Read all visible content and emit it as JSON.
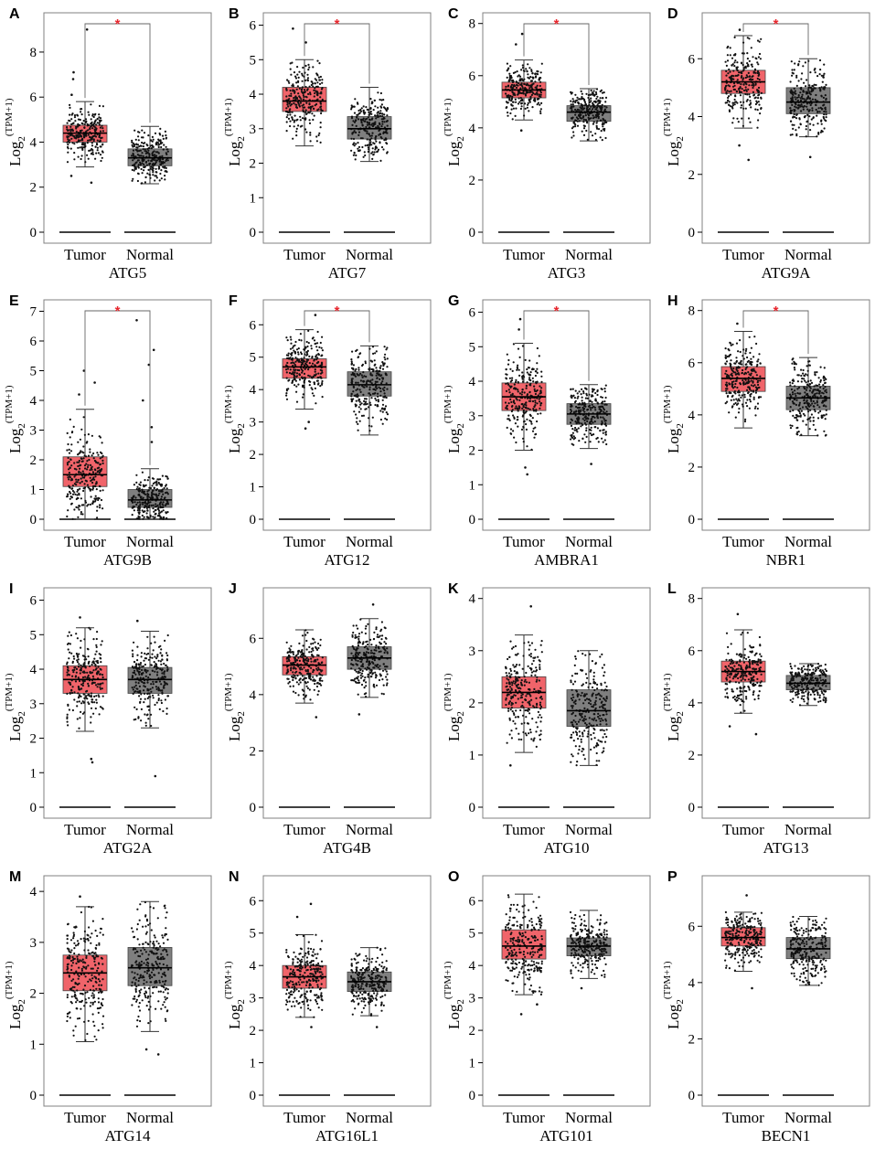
{
  "figure": {
    "y_axis_label": {
      "base": "Log",
      "subscript": "2",
      "superscript": "(TPM+1)"
    },
    "group_labels": [
      "Tumor",
      "Normal"
    ],
    "significance_mark": "*",
    "colors": {
      "tumor": "#f0646a",
      "normal": "#7f7f7f",
      "significance": "#e8262d",
      "frame": "#808080",
      "points": "#111111"
    }
  },
  "chart_data": [
    {
      "type": "box",
      "panel": "A",
      "gene": "ATG5",
      "ylim": [
        0,
        9.5
      ],
      "ticks": [
        0,
        2,
        4,
        6,
        8
      ],
      "significant": true,
      "series": [
        {
          "name": "Tumor",
          "whisker_low": 2.9,
          "q1": 4.0,
          "median": 4.4,
          "q3": 4.75,
          "whisker_high": 5.8,
          "outliers": [
            2.2,
            2.5,
            6.1,
            6.8,
            7.1,
            9.0
          ]
        },
        {
          "name": "Normal",
          "whisker_low": 2.15,
          "q1": 2.95,
          "median": 3.3,
          "q3": 3.7,
          "whisker_high": 4.7,
          "outliers": []
        }
      ]
    },
    {
      "type": "box",
      "panel": "B",
      "gene": "ATG7",
      "ylim": [
        0,
        6.2
      ],
      "ticks": [
        0,
        1,
        2,
        3,
        4,
        5,
        6
      ],
      "significant": true,
      "series": [
        {
          "name": "Tumor",
          "whisker_low": 2.5,
          "q1": 3.5,
          "median": 3.8,
          "q3": 4.2,
          "whisker_high": 5.0,
          "outliers": [
            5.5,
            5.9
          ]
        },
        {
          "name": "Normal",
          "whisker_low": 2.05,
          "q1": 2.7,
          "median": 3.0,
          "q3": 3.35,
          "whisker_high": 4.2,
          "outliers": []
        }
      ]
    },
    {
      "type": "box",
      "panel": "C",
      "gene": "ATG3",
      "ylim": [
        0,
        8.2
      ],
      "ticks": [
        0,
        2,
        4,
        6,
        8
      ],
      "significant": true,
      "series": [
        {
          "name": "Tumor",
          "whisker_low": 4.3,
          "q1": 5.15,
          "median": 5.45,
          "q3": 5.75,
          "whisker_high": 6.6,
          "outliers": [
            3.9,
            7.2,
            7.6
          ]
        },
        {
          "name": "Normal",
          "whisker_low": 3.5,
          "q1": 4.25,
          "median": 4.6,
          "q3": 4.85,
          "whisker_high": 5.5,
          "outliers": []
        }
      ]
    },
    {
      "type": "box",
      "panel": "D",
      "gene": "ATG9A",
      "ylim": [
        0,
        7.4
      ],
      "ticks": [
        0,
        2,
        4,
        6
      ],
      "significant": true,
      "series": [
        {
          "name": "Tumor",
          "whisker_low": 3.6,
          "q1": 4.8,
          "median": 5.2,
          "q3": 5.6,
          "whisker_high": 6.8,
          "outliers": [
            2.5,
            3.0,
            7.0
          ]
        },
        {
          "name": "Normal",
          "whisker_low": 3.3,
          "q1": 4.1,
          "median": 4.5,
          "q3": 5.0,
          "whisker_high": 6.0,
          "outliers": [
            2.6
          ]
        }
      ]
    },
    {
      "type": "box",
      "panel": "E",
      "gene": "ATG9B",
      "ylim": [
        0,
        7.2
      ],
      "ticks": [
        0,
        1,
        2,
        3,
        4,
        5,
        6,
        7
      ],
      "significant": true,
      "series": [
        {
          "name": "Tumor",
          "whisker_low": 0.0,
          "q1": 1.1,
          "median": 1.5,
          "q3": 2.1,
          "whisker_high": 3.7,
          "outliers": [
            4.2,
            4.6,
            5.0
          ]
        },
        {
          "name": "Normal",
          "whisker_low": 0.0,
          "q1": 0.4,
          "median": 0.65,
          "q3": 1.0,
          "whisker_high": 1.7,
          "outliers": [
            2.6,
            3.1,
            4.0,
            5.2,
            5.7,
            6.7
          ]
        }
      ]
    },
    {
      "type": "box",
      "panel": "F",
      "gene": "ATG12",
      "ylim": [
        0,
        6.6
      ],
      "ticks": [
        0,
        1,
        2,
        3,
        4,
        5,
        6
      ],
      "significant": true,
      "series": [
        {
          "name": "Tumor",
          "whisker_low": 3.4,
          "q1": 4.35,
          "median": 4.7,
          "q3": 4.95,
          "whisker_high": 5.85,
          "outliers": [
            2.8,
            3.0,
            6.3
          ]
        },
        {
          "name": "Normal",
          "whisker_low": 2.6,
          "q1": 3.8,
          "median": 4.15,
          "q3": 4.55,
          "whisker_high": 5.35,
          "outliers": []
        }
      ]
    },
    {
      "type": "box",
      "panel": "G",
      "gene": "AMBRA1",
      "ylim": [
        0,
        6.2
      ],
      "ticks": [
        0,
        1,
        2,
        3,
        4,
        5,
        6
      ],
      "significant": true,
      "series": [
        {
          "name": "Tumor",
          "whisker_low": 2.0,
          "q1": 3.15,
          "median": 3.55,
          "q3": 3.95,
          "whisker_high": 5.1,
          "outliers": [
            1.3,
            1.5,
            5.5,
            5.8
          ]
        },
        {
          "name": "Normal",
          "whisker_low": 2.05,
          "q1": 2.75,
          "median": 3.05,
          "q3": 3.35,
          "whisker_high": 3.9,
          "outliers": [
            1.6
          ]
        }
      ]
    },
    {
      "type": "box",
      "panel": "H",
      "gene": "NBR1",
      "ylim": [
        0,
        8.2
      ],
      "ticks": [
        0,
        2,
        4,
        6,
        8
      ],
      "significant": true,
      "series": [
        {
          "name": "Tumor",
          "whisker_low": 3.5,
          "q1": 4.9,
          "median": 5.4,
          "q3": 5.85,
          "whisker_high": 7.2,
          "outliers": [
            7.5
          ]
        },
        {
          "name": "Normal",
          "whisker_low": 3.2,
          "q1": 4.2,
          "median": 4.65,
          "q3": 5.1,
          "whisker_high": 6.2,
          "outliers": []
        }
      ]
    },
    {
      "type": "box",
      "panel": "I",
      "gene": "ATG2A",
      "ylim": [
        0,
        6.2
      ],
      "ticks": [
        0,
        1,
        2,
        3,
        4,
        5,
        6
      ],
      "significant": false,
      "series": [
        {
          "name": "Tumor",
          "whisker_low": 2.2,
          "q1": 3.3,
          "median": 3.7,
          "q3": 4.1,
          "whisker_high": 5.2,
          "outliers": [
            1.3,
            1.4,
            5.5
          ]
        },
        {
          "name": "Normal",
          "whisker_low": 2.3,
          "q1": 3.3,
          "median": 3.7,
          "q3": 4.05,
          "whisker_high": 5.1,
          "outliers": [
            0.9,
            5.4
          ]
        }
      ]
    },
    {
      "type": "box",
      "panel": "J",
      "gene": "ATG4B",
      "ylim": [
        0,
        7.6
      ],
      "ticks": [
        0,
        2,
        4,
        6
      ],
      "significant": false,
      "series": [
        {
          "name": "Tumor",
          "whisker_low": 3.7,
          "q1": 4.7,
          "median": 5.05,
          "q3": 5.35,
          "whisker_high": 6.3,
          "outliers": [
            3.2
          ]
        },
        {
          "name": "Normal",
          "whisker_low": 3.9,
          "q1": 4.9,
          "median": 5.3,
          "q3": 5.7,
          "whisker_high": 6.7,
          "outliers": [
            3.3,
            7.2
          ]
        }
      ]
    },
    {
      "type": "box",
      "panel": "K",
      "gene": "ATG10",
      "ylim": [
        0,
        4.1
      ],
      "ticks": [
        0,
        1,
        2,
        3,
        4
      ],
      "significant": false,
      "series": [
        {
          "name": "Tumor",
          "whisker_low": 1.05,
          "q1": 1.9,
          "median": 2.2,
          "q3": 2.5,
          "whisker_high": 3.3,
          "outliers": [
            0.8,
            3.85
          ]
        },
        {
          "name": "Normal",
          "whisker_low": 0.8,
          "q1": 1.55,
          "median": 1.85,
          "q3": 2.25,
          "whisker_high": 3.0,
          "outliers": []
        }
      ]
    },
    {
      "type": "box",
      "panel": "L",
      "gene": "ATG13",
      "ylim": [
        0,
        8.2
      ],
      "ticks": [
        0,
        2,
        4,
        6,
        8
      ],
      "significant": false,
      "series": [
        {
          "name": "Tumor",
          "whisker_low": 3.6,
          "q1": 4.8,
          "median": 5.2,
          "q3": 5.6,
          "whisker_high": 6.8,
          "outliers": [
            2.8,
            3.1,
            7.4
          ]
        },
        {
          "name": "Normal",
          "whisker_low": 3.9,
          "q1": 4.5,
          "median": 4.75,
          "q3": 5.05,
          "whisker_high": 5.5,
          "outliers": []
        }
      ]
    },
    {
      "type": "box",
      "panel": "M",
      "gene": "ATG14",
      "ylim": [
        0,
        4.2
      ],
      "ticks": [
        0,
        1,
        2,
        3,
        4
      ],
      "significant": false,
      "series": [
        {
          "name": "Tumor",
          "whisker_low": 1.05,
          "q1": 2.05,
          "median": 2.4,
          "q3": 2.75,
          "whisker_high": 3.7,
          "outliers": [
            3.9
          ]
        },
        {
          "name": "Normal",
          "whisker_low": 1.25,
          "q1": 2.15,
          "median": 2.5,
          "q3": 2.9,
          "whisker_high": 3.8,
          "outliers": [
            0.8,
            0.9
          ]
        }
      ]
    },
    {
      "type": "box",
      "panel": "N",
      "gene": "ATG16L1",
      "ylim": [
        0,
        6.6
      ],
      "ticks": [
        0,
        1,
        2,
        3,
        4,
        5,
        6
      ],
      "significant": false,
      "series": [
        {
          "name": "Tumor",
          "whisker_low": 2.4,
          "q1": 3.3,
          "median": 3.65,
          "q3": 4.0,
          "whisker_high": 4.95,
          "outliers": [
            2.1,
            5.5,
            5.9
          ]
        },
        {
          "name": "Normal",
          "whisker_low": 2.45,
          "q1": 3.2,
          "median": 3.5,
          "q3": 3.8,
          "whisker_high": 4.55,
          "outliers": [
            2.1
          ]
        }
      ]
    },
    {
      "type": "box",
      "panel": "O",
      "gene": "ATG101",
      "ylim": [
        0,
        6.6
      ],
      "ticks": [
        0,
        1,
        2,
        3,
        4,
        5,
        6
      ],
      "significant": false,
      "series": [
        {
          "name": "Tumor",
          "whisker_low": 3.1,
          "q1": 4.2,
          "median": 4.6,
          "q3": 5.1,
          "whisker_high": 6.2,
          "outliers": [
            2.5,
            2.8
          ]
        },
        {
          "name": "Normal",
          "whisker_low": 3.6,
          "q1": 4.3,
          "median": 4.6,
          "q3": 4.85,
          "whisker_high": 5.7,
          "outliers": [
            3.3
          ]
        }
      ]
    },
    {
      "type": "box",
      "panel": "P",
      "gene": "BECN1",
      "ylim": [
        0,
        7.6
      ],
      "ticks": [
        0,
        2,
        4,
        6
      ],
      "significant": false,
      "series": [
        {
          "name": "Tumor",
          "whisker_low": 4.4,
          "q1": 5.3,
          "median": 5.6,
          "q3": 5.95,
          "whisker_high": 6.5,
          "outliers": [
            3.8,
            7.1
          ]
        },
        {
          "name": "Normal",
          "whisker_low": 3.9,
          "q1": 4.85,
          "median": 5.2,
          "q3": 5.6,
          "whisker_high": 6.35,
          "outliers": []
        }
      ]
    }
  ]
}
